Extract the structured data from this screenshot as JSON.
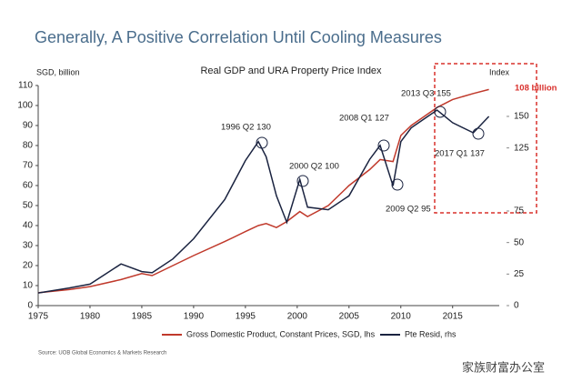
{
  "chart_data": {
    "type": "line",
    "title": "Generally, A Positive Correlation Until Cooling Measures",
    "subtitle": "Real GDP and URA Property Price Index",
    "y_label": "SGD, billion",
    "y2_label": "Index",
    "x": [
      1975,
      1978,
      1980,
      1983,
      1985,
      1986,
      1988,
      1990,
      1993,
      1995,
      1996.25,
      1997,
      1998,
      1999,
      2000.25,
      2001,
      2003,
      2005,
      2007,
      2008,
      2009.25,
      2010,
      2011,
      2013.5,
      2015,
      2017,
      2018.5
    ],
    "series": [
      {
        "name": "Gross Domestic Product, Constant Prices, SGD, lhs",
        "color": "#c0392b",
        "values": [
          6.4,
          8,
          9.5,
          13,
          16,
          15,
          20,
          25,
          32,
          37,
          40,
          41,
          39,
          42,
          47,
          44.5,
          50,
          60,
          68,
          73,
          72,
          85,
          90,
          99,
          103,
          106,
          108
        ]
      },
      {
        "name": "Pte Resid, rhs",
        "color": "#1a2340",
        "axis": "y2",
        "values": [
          10,
          14,
          17,
          33,
          27,
          26,
          37,
          53,
          84,
          115,
          130,
          118,
          87,
          66,
          100,
          78,
          76,
          87,
          116,
          127,
          95,
          130,
          141,
          155,
          145,
          137,
          150
        ]
      }
    ],
    "xlim": [
      1975,
      2019.5
    ],
    "xticks": [
      1975,
      1980,
      1985,
      1990,
      1995,
      2000,
      2005,
      2010,
      2015
    ],
    "ylim": [
      0,
      110
    ],
    "yticks": [
      0,
      10,
      20,
      30,
      40,
      50,
      60,
      70,
      80,
      90,
      100,
      110
    ],
    "y2lim": [
      0,
      174.5
    ],
    "y2ticks": [
      0,
      25,
      50,
      75,
      125,
      150
    ],
    "annotations": [
      "108 billion",
      "1996 Q2 130",
      "2000 Q2 100",
      "2008 Q1 127",
      "2009 Q2 95",
      "2013 Q3 155",
      "2017 Q1 137"
    ],
    "source": "Source: UOB Global Economics & Markets Research",
    "watermark": "家族财富办公室"
  }
}
